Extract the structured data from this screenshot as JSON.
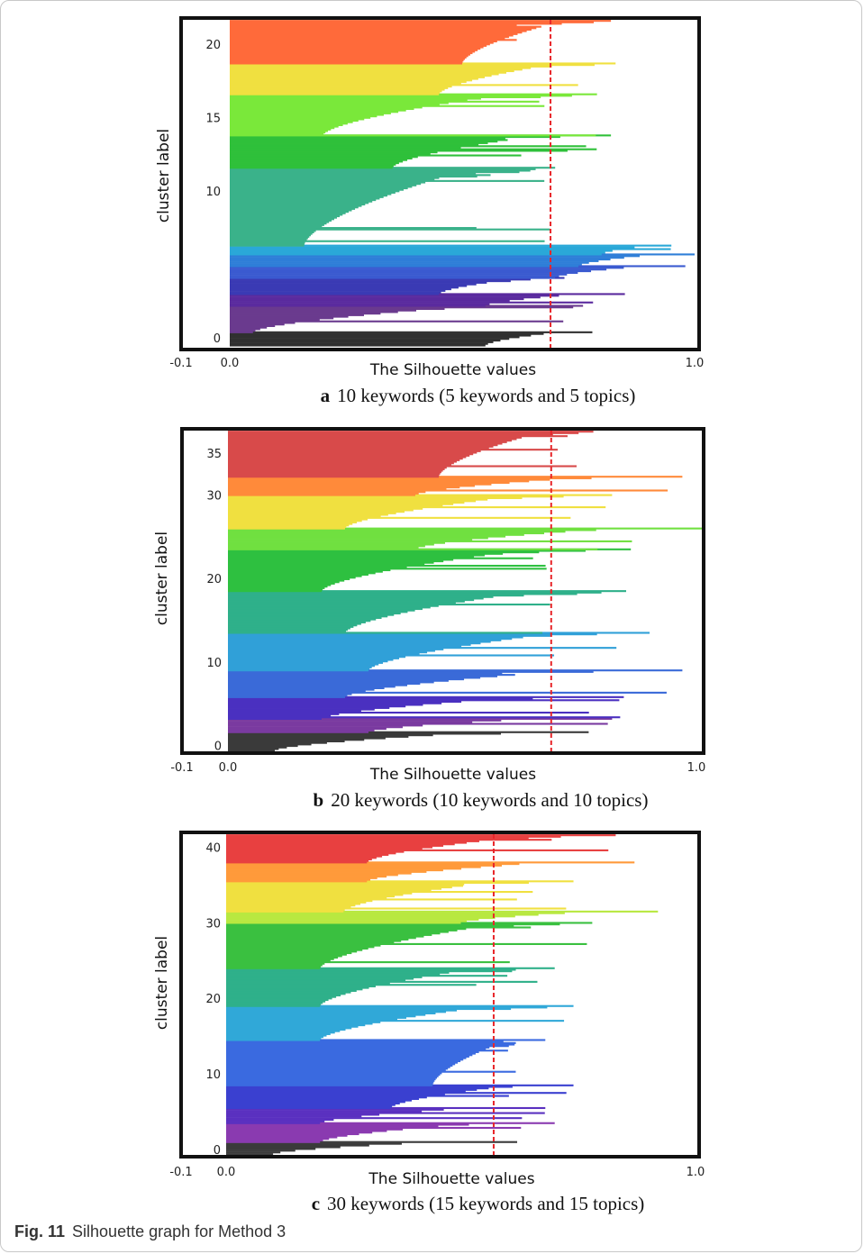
{
  "caption": {
    "label": "Fig. 11",
    "text": "Silhouette graph for Method 3"
  },
  "chart_data": [
    {
      "type": "bar",
      "subcaption": {
        "letter": "a",
        "text": "10 keywords (5 keywords and 5 topics)"
      },
      "xlabel": "The Silhouette values",
      "ylabel": "cluster label",
      "xlim": [
        -0.1,
        1.0
      ],
      "x_ticks": [
        "-0.1",
        "0.0",
        "1.0"
      ],
      "y_ticks": [
        {
          "label": "0",
          "pos": 0
        },
        {
          "label": "10",
          "pos": 10
        },
        {
          "label": "15",
          "pos": 15
        },
        {
          "label": "20",
          "pos": 20
        }
      ],
      "ylim": [
        -0.6,
        21.6
      ],
      "average_silhouette": 0.69,
      "clusters": [
        {
          "label": 0,
          "color": "#303030",
          "lo": -0.5,
          "hi": 0.4,
          "peak": 0.78,
          "base": 0.55
        },
        {
          "label": 1,
          "color": "#6a3a8e",
          "lo": 0.4,
          "hi": 2.2,
          "peak": 0.76,
          "base": 0.05
        },
        {
          "label": 2,
          "color": "#5a2a9e",
          "lo": 2.2,
          "hi": 3.0,
          "peak": 0.85,
          "base": 0.55
        },
        {
          "label": 3,
          "color": "#3a3ab4",
          "lo": 3.0,
          "hi": 4.1,
          "peak": 0.72,
          "base": 0.45
        },
        {
          "label": 4,
          "color": "#3a5ad0",
          "lo": 4.1,
          "hi": 4.9,
          "peak": 0.98,
          "base": 0.7
        },
        {
          "label": 5,
          "color": "#2e7ed8",
          "lo": 4.9,
          "hi": 5.7,
          "peak": 1.0,
          "base": 0.75
        },
        {
          "label": 6,
          "color": "#2aa8d8",
          "lo": 5.7,
          "hi": 6.3,
          "peak": 0.95,
          "base": 0.8
        },
        {
          "label": 7,
          "color": "#3ab28a",
          "lo": 6.3,
          "hi": 11.6,
          "peak": 0.7,
          "base": 0.16
        },
        {
          "label": 8,
          "color": "#2fc03a",
          "lo": 11.6,
          "hi": 13.8,
          "peak": 0.82,
          "base": 0.35
        },
        {
          "label": 9,
          "color": "#7ae83a",
          "lo": 13.8,
          "hi": 16.6,
          "peak": 0.79,
          "base": 0.2
        },
        {
          "label": 10,
          "color": "#f0e040",
          "lo": 16.6,
          "hi": 18.7,
          "peak": 0.83,
          "base": 0.45
        },
        {
          "label": 11,
          "color": "#ff6a3a",
          "lo": 18.7,
          "hi": 21.6,
          "peak": 0.82,
          "base": 0.5
        }
      ]
    },
    {
      "type": "bar",
      "subcaption": {
        "letter": "b",
        "text": "20 keywords (10 keywords and 10 topics)"
      },
      "xlabel": "The Silhouette values",
      "ylabel": "cluster label",
      "xlim": [
        -0.1,
        1.0
      ],
      "x_ticks": [
        "-0.1",
        "0.0",
        "1.0"
      ],
      "y_ticks": [
        {
          "label": "0",
          "pos": 0
        },
        {
          "label": "10",
          "pos": 10
        },
        {
          "label": "20",
          "pos": 20
        },
        {
          "label": "30",
          "pos": 30
        },
        {
          "label": "35",
          "pos": 35
        }
      ],
      "ylim": [
        -0.6,
        37.6
      ],
      "average_silhouette": 0.69,
      "clusters": [
        {
          "label": 0,
          "color": "#3a3a3a",
          "lo": -0.6,
          "hi": 1.6,
          "peak": 0.77,
          "base": 0.1
        },
        {
          "label": 1,
          "color": "#7a3aa0",
          "lo": 1.6,
          "hi": 3.2,
          "peak": 0.82,
          "base": 0.3
        },
        {
          "label": 2,
          "color": "#4a30c0",
          "lo": 3.2,
          "hi": 5.8,
          "peak": 0.85,
          "base": 0.2
        },
        {
          "label": 3,
          "color": "#3a6ad8",
          "lo": 5.8,
          "hi": 9.0,
          "peak": 0.97,
          "base": 0.25
        },
        {
          "label": 4,
          "color": "#30a0d8",
          "lo": 9.0,
          "hi": 13.5,
          "peak": 0.9,
          "base": 0.3
        },
        {
          "label": 5,
          "color": "#2fb08a",
          "lo": 13.5,
          "hi": 18.5,
          "peak": 0.85,
          "base": 0.25
        },
        {
          "label": 6,
          "color": "#2ec040",
          "lo": 18.5,
          "hi": 23.5,
          "peak": 0.86,
          "base": 0.2
        },
        {
          "label": 7,
          "color": "#70e040",
          "lo": 23.5,
          "hi": 26.0,
          "peak": 1.02,
          "base": 0.4
        },
        {
          "label": 8,
          "color": "#f0e040",
          "lo": 26.0,
          "hi": 30.0,
          "peak": 0.82,
          "base": 0.25
        },
        {
          "label": 9,
          "color": "#ff8a3a",
          "lo": 30.0,
          "hi": 32.2,
          "peak": 0.97,
          "base": 0.4
        },
        {
          "label": 10,
          "color": "#d84a4a",
          "lo": 32.2,
          "hi": 37.6,
          "peak": 0.78,
          "base": 0.45
        }
      ]
    },
    {
      "type": "bar",
      "subcaption": {
        "letter": "c",
        "text": "30 keywords (15 keywords and 15 topics)"
      },
      "xlabel": "The Silhouette values",
      "ylabel": "cluster label",
      "xlim": [
        -0.1,
        1.0
      ],
      "x_ticks": [
        "-0.1",
        "0.0",
        "1.0"
      ],
      "y_ticks": [
        {
          "label": "0",
          "pos": 0
        },
        {
          "label": "10",
          "pos": 10
        },
        {
          "label": "20",
          "pos": 20
        },
        {
          "label": "30",
          "pos": 30
        },
        {
          "label": "40",
          "pos": 40
        }
      ],
      "ylim": [
        -0.6,
        41.6
      ],
      "average_silhouette": 0.57,
      "clusters": [
        {
          "label": 0,
          "color": "#3a3a3a",
          "lo": -0.6,
          "hi": 1.0,
          "peak": 0.62,
          "base": 0.1
        },
        {
          "label": 1,
          "color": "#8a3ab0",
          "lo": 1.0,
          "hi": 3.5,
          "peak": 0.7,
          "base": 0.2
        },
        {
          "label": 2,
          "color": "#5a30c0",
          "lo": 3.5,
          "hi": 5.5,
          "peak": 0.68,
          "base": 0.2
        },
        {
          "label": 3,
          "color": "#3a40d0",
          "lo": 5.5,
          "hi": 8.5,
          "peak": 0.74,
          "base": 0.35
        },
        {
          "label": 4,
          "color": "#3a6ae0",
          "lo": 8.5,
          "hi": 14.5,
          "peak": 0.68,
          "base": 0.44
        },
        {
          "label": 5,
          "color": "#30a8d8",
          "lo": 14.5,
          "hi": 19.0,
          "peak": 0.74,
          "base": 0.2
        },
        {
          "label": 6,
          "color": "#2fb08a",
          "lo": 19.0,
          "hi": 24.0,
          "peak": 0.7,
          "base": 0.2
        },
        {
          "label": 7,
          "color": "#3ac040",
          "lo": 24.0,
          "hi": 30.0,
          "peak": 0.78,
          "base": 0.2
        },
        {
          "label": 8,
          "color": "#b8e840",
          "lo": 30.0,
          "hi": 31.5,
          "peak": 0.92,
          "base": 0.5
        },
        {
          "label": 9,
          "color": "#f0e040",
          "lo": 31.5,
          "hi": 35.5,
          "peak": 0.74,
          "base": 0.25
        },
        {
          "label": 10,
          "color": "#ff9a3a",
          "lo": 35.5,
          "hi": 38.0,
          "peak": 0.87,
          "base": 0.3
        },
        {
          "label": 11,
          "color": "#e84040",
          "lo": 38.0,
          "hi": 41.6,
          "peak": 0.83,
          "base": 0.3
        }
      ]
    }
  ]
}
